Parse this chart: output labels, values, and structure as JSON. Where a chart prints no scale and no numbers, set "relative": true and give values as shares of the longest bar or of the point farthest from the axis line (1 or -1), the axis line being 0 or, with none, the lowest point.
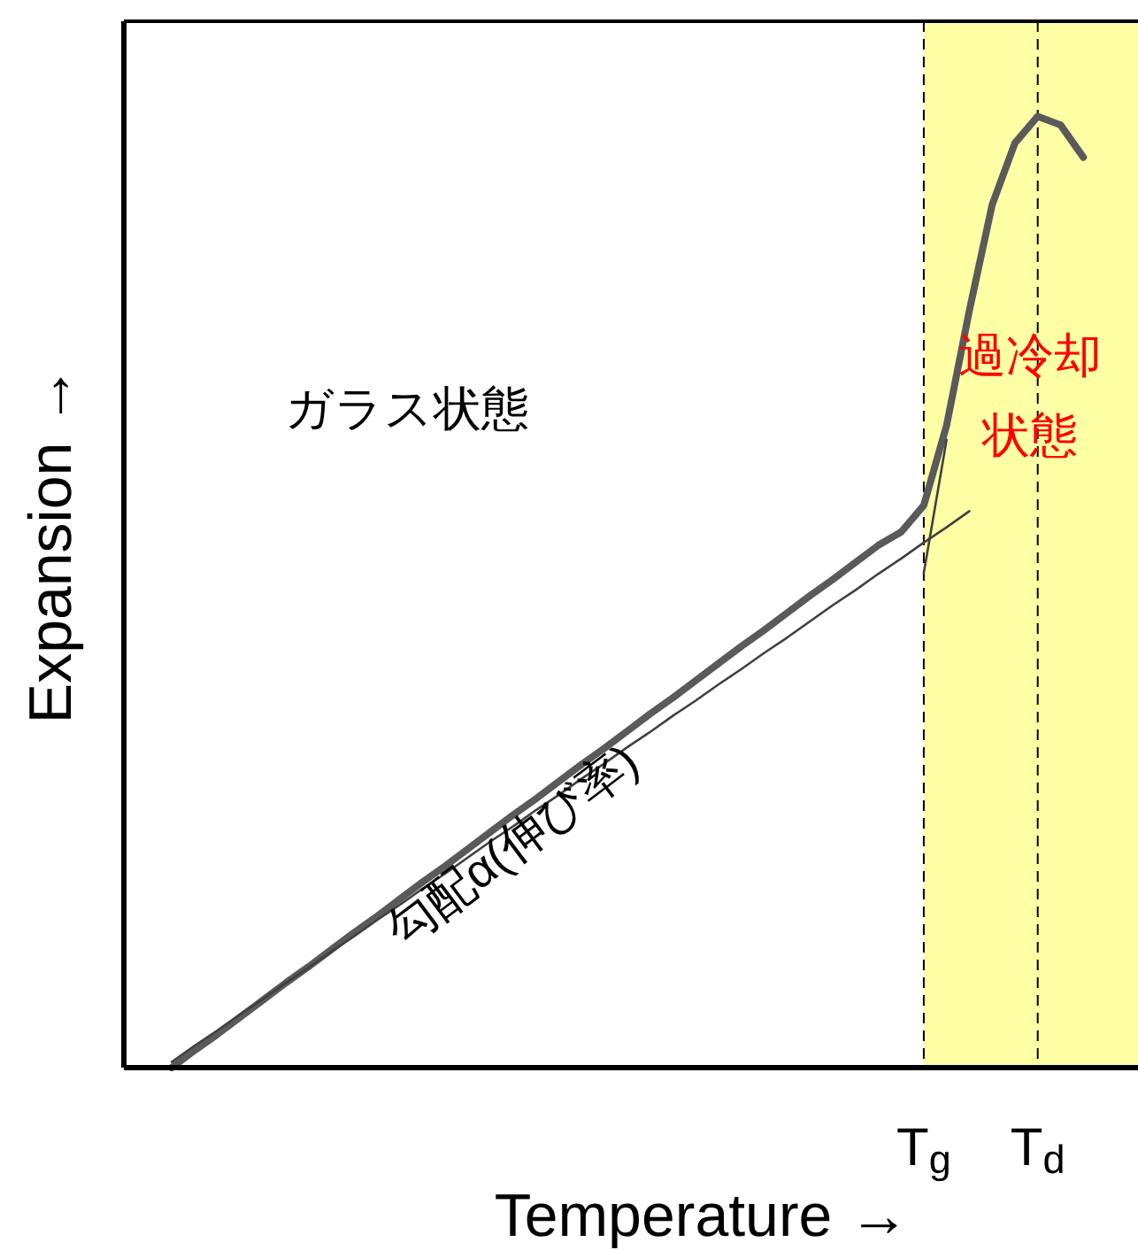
{
  "chart_data": {
    "type": "line",
    "relative": true,
    "xlabel": "Temperature →",
    "ylabel": "Expansion →",
    "categories": [
      null,
      null,
      null,
      null,
      null,
      null,
      null,
      null,
      null,
      null,
      null,
      null,
      null,
      null,
      null,
      null,
      null,
      null,
      null,
      null,
      null,
      null,
      null,
      null,
      null,
      null,
      null,
      null,
      null,
      null,
      null,
      null,
      null,
      "T$_{g}$",
      null,
      null,
      null,
      null,
      "T$_{d}$",
      null,
      null
    ],
    "series": [
      {
        "color": "#5a5a5a",
        "values": [
          0,
          0.018,
          0.035,
          0.053,
          0.071,
          0.089,
          0.106,
          0.124,
          0.142,
          0.159,
          0.177,
          0.195,
          0.212,
          0.23,
          0.248,
          0.266,
          0.283,
          0.301,
          0.319,
          0.336,
          0.354,
          0.372,
          0.389,
          0.407,
          0.425,
          0.443,
          0.46,
          0.478,
          0.496,
          0.513,
          0.531,
          0.549,
          0.563,
          0.591,
          0.675,
          0.796,
          0.907,
          0.972,
          1.0,
          0.991,
          0.957
        ]
      },
      {
        "color": "#404040",
        "values": [
          0.006,
          0.023,
          0.039,
          0.056,
          0.072,
          0.089,
          0.105,
          0.122,
          0.138,
          0.155,
          0.171,
          0.188,
          0.204,
          0.221,
          0.238,
          0.254,
          0.271,
          0.287,
          0.304,
          0.32,
          0.337,
          0.353,
          0.37,
          0.386,
          0.403,
          0.419,
          0.436,
          0.452,
          0.469,
          0.486,
          0.502,
          0.519,
          0.535,
          0.552,
          0.568,
          0.585,
          null,
          null,
          null,
          null,
          null
        ]
      },
      {
        "color": "#404040",
        "values": [
          null,
          null,
          null,
          null,
          null,
          null,
          null,
          null,
          null,
          null,
          null,
          null,
          null,
          null,
          null,
          null,
          null,
          null,
          null,
          null,
          null,
          null,
          null,
          null,
          null,
          null,
          null,
          null,
          null,
          null,
          null,
          null,
          null,
          0.52,
          0.66,
          null,
          null,
          null,
          null,
          null,
          null
        ]
      }
    ],
    "ref_lines": [
      {
        "axis": "x",
        "value": "T$_{g}$",
        "color": "#000000",
        "line_style": "dashed"
      },
      {
        "axis": "x",
        "value": "T$_{d}$",
        "color": "#000000",
        "line_style": "dashed"
      }
    ],
    "annotations": [
      "ガラス状態",
      "過冷却",
      "状態",
      "勾配α(伸び率)"
    ],
    "grid": false
  }
}
